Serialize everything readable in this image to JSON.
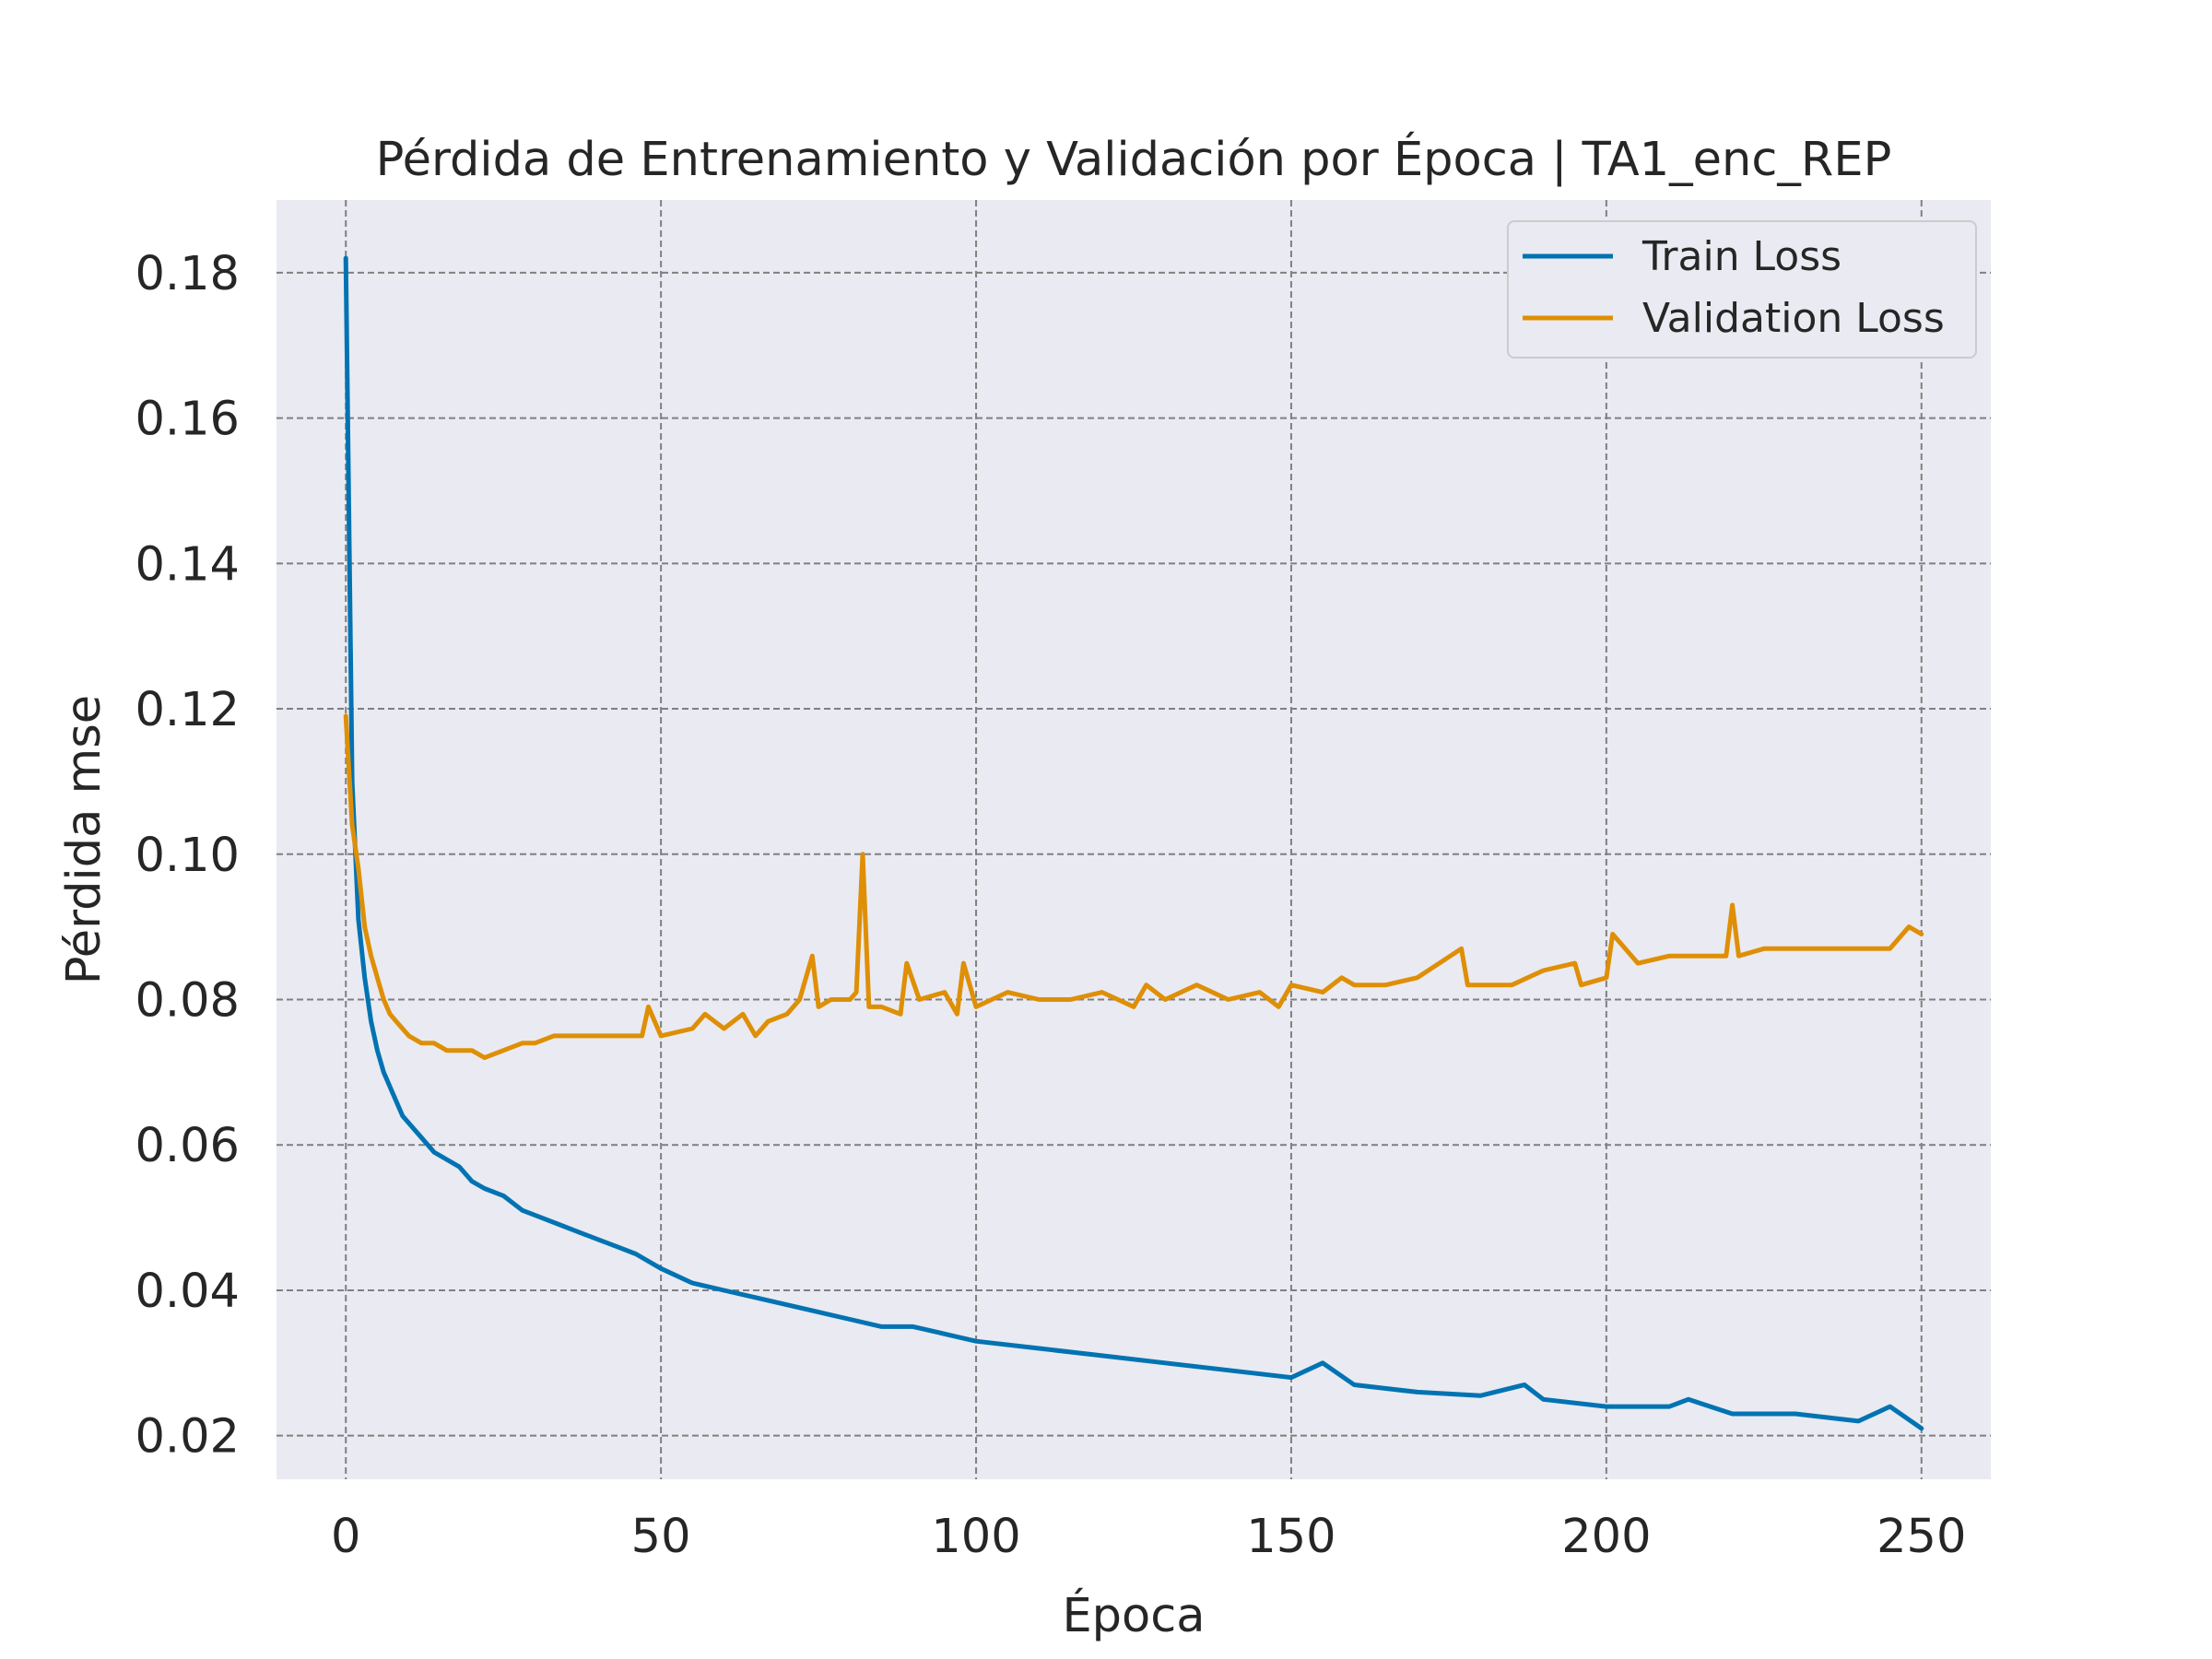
{
  "chart_data": {
    "type": "line",
    "title": "Pérdida de Entrenamiento y Validación por Época | TA1_enc_REP",
    "xlabel": "Época",
    "ylabel": "Pérdida mse",
    "xlim": [
      -11,
      261
    ],
    "ylim": [
      0.014,
      0.19
    ],
    "xticks": [
      0,
      50,
      100,
      150,
      200,
      250
    ],
    "xtick_labels": [
      "0",
      "50",
      "100",
      "150",
      "200",
      "250"
    ],
    "yticks": [
      0.02,
      0.04,
      0.06,
      0.08,
      0.1,
      0.12,
      0.14,
      0.16,
      0.18
    ],
    "ytick_labels": [
      "0.02",
      "0.04",
      "0.06",
      "0.08",
      "0.10",
      "0.12",
      "0.14",
      "0.16",
      "0.18"
    ],
    "grid": true,
    "legend_position": "top-right",
    "colors": {
      "background": "#eaeaf2",
      "grid": "#808080",
      "train": "#0173b2",
      "validation": "#de8f05"
    },
    "series": [
      {
        "name": "Train Loss",
        "x": [
          0,
          1,
          2,
          3,
          4,
          5,
          6,
          7,
          8,
          9,
          10,
          12,
          14,
          16,
          18,
          20,
          22,
          25,
          28,
          31,
          34,
          37,
          40,
          43,
          46,
          50,
          55,
          60,
          65,
          70,
          75,
          80,
          85,
          90,
          95,
          100,
          110,
          120,
          130,
          140,
          150,
          155,
          160,
          170,
          180,
          187,
          190,
          200,
          210,
          213,
          220,
          230,
          240,
          245,
          250
        ],
        "y": [
          0.182,
          0.11,
          0.091,
          0.083,
          0.077,
          0.073,
          0.07,
          0.068,
          0.066,
          0.064,
          0.063,
          0.061,
          0.059,
          0.058,
          0.057,
          0.055,
          0.054,
          0.053,
          0.051,
          0.05,
          0.049,
          0.048,
          0.047,
          0.046,
          0.045,
          0.043,
          0.041,
          0.04,
          0.039,
          0.038,
          0.037,
          0.036,
          0.035,
          0.035,
          0.034,
          0.033,
          0.032,
          0.031,
          0.03,
          0.029,
          0.028,
          0.03,
          0.027,
          0.026,
          0.0255,
          0.027,
          0.025,
          0.024,
          0.024,
          0.025,
          0.023,
          0.023,
          0.022,
          0.024,
          0.021
        ]
      },
      {
        "name": "Validation Loss",
        "x": [
          0,
          1,
          2,
          3,
          4,
          5,
          6,
          7,
          8,
          10,
          12,
          14,
          16,
          18,
          20,
          22,
          25,
          28,
          30,
          33,
          36,
          40,
          44,
          47,
          48,
          50,
          55,
          57,
          60,
          63,
          65,
          67,
          70,
          72,
          74,
          75,
          77,
          80,
          81,
          82,
          83,
          85,
          88,
          89,
          91,
          95,
          97,
          98,
          100,
          105,
          110,
          115,
          120,
          125,
          127,
          130,
          135,
          140,
          145,
          148,
          150,
          155,
          158,
          160,
          165,
          170,
          177,
          178,
          180,
          185,
          190,
          195,
          196,
          200,
          201,
          205,
          210,
          215,
          219,
          220,
          221,
          225,
          230,
          235,
          240,
          245,
          248,
          250
        ],
        "y": [
          0.119,
          0.104,
          0.098,
          0.09,
          0.086,
          0.083,
          0.08,
          0.078,
          0.077,
          0.075,
          0.074,
          0.074,
          0.073,
          0.073,
          0.073,
          0.072,
          0.073,
          0.074,
          0.074,
          0.075,
          0.075,
          0.075,
          0.075,
          0.075,
          0.079,
          0.075,
          0.076,
          0.078,
          0.076,
          0.078,
          0.075,
          0.077,
          0.078,
          0.08,
          0.086,
          0.079,
          0.08,
          0.08,
          0.081,
          0.1,
          0.079,
          0.079,
          0.078,
          0.085,
          0.08,
          0.081,
          0.078,
          0.085,
          0.079,
          0.081,
          0.08,
          0.08,
          0.081,
          0.079,
          0.082,
          0.08,
          0.082,
          0.08,
          0.081,
          0.079,
          0.082,
          0.081,
          0.083,
          0.082,
          0.082,
          0.083,
          0.087,
          0.082,
          0.082,
          0.082,
          0.084,
          0.085,
          0.082,
          0.083,
          0.089,
          0.085,
          0.086,
          0.086,
          0.086,
          0.093,
          0.086,
          0.087,
          0.087,
          0.087,
          0.087,
          0.087,
          0.09,
          0.089
        ]
      }
    ]
  }
}
